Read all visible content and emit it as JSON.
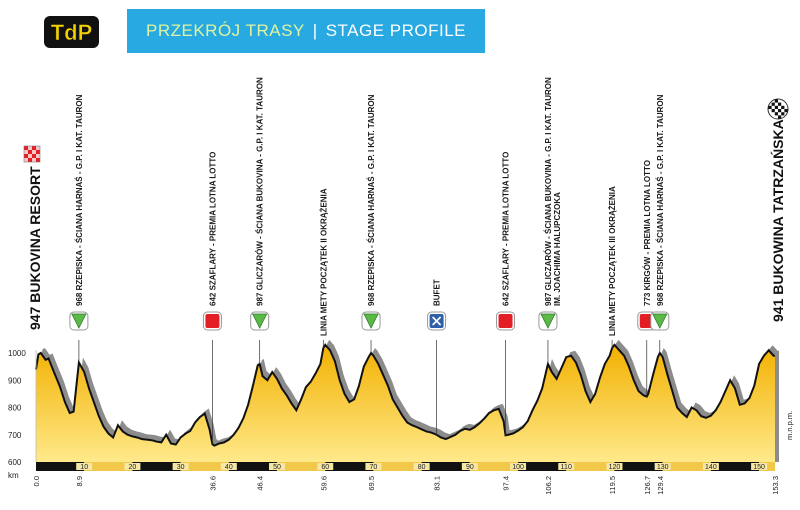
{
  "header": {
    "logo_text": "TdP",
    "title_pl": "PRZEKRÓJ TRASY",
    "separator": "|",
    "title_en": "STAGE PROFILE"
  },
  "colors": {
    "fill_top": "#f2b000",
    "fill_bottom": "#ffe98a",
    "shadow": "#8c8c8c",
    "banner": "#29a9e1",
    "sprint_red": "#e31e24",
    "kom_green": "#5bb947",
    "feed_blue": "#2f5fa7"
  },
  "icons": {
    "start": "checkered-flag-red-icon",
    "finish": "checkered-flag-black-icon",
    "kom": "kom-green-triangle-icon",
    "sprint": "sprint-red-square-icon",
    "feed": "feed-zone-x-icon"
  },
  "chart_data": {
    "type": "area",
    "ylabel": "m.n.p.m.",
    "xlabel": "km",
    "ylim": [
      600,
      1050
    ],
    "yticks": [
      "600",
      "700",
      "800",
      "900",
      "1000"
    ],
    "xlim": [
      0,
      153.3
    ],
    "band_ticks": [
      "10",
      "20",
      "30",
      "40",
      "50",
      "60",
      "70",
      "80",
      "90",
      "100",
      "110",
      "120",
      "130",
      "140",
      "150"
    ],
    "start_label": "947 BUKOVINA RESORT",
    "finish_label": "941 BUKOWINA TATRZAŃSKA",
    "km_labels": [
      "0.0",
      "8.9",
      "36.6",
      "46.4",
      "59.6",
      "69.5",
      "83.1",
      "97.4",
      "106.2",
      "119.5",
      "126.7",
      "129.4",
      "153.3"
    ],
    "profile": [
      [
        0,
        940
      ],
      [
        0.5,
        995
      ],
      [
        1,
        1000
      ],
      [
        2,
        975
      ],
      [
        2.6,
        980
      ],
      [
        3.5,
        940
      ],
      [
        5,
        875
      ],
      [
        6,
        820
      ],
      [
        7,
        780
      ],
      [
        7.8,
        785
      ],
      [
        8.9,
        965
      ],
      [
        10,
        930
      ],
      [
        11,
        870
      ],
      [
        12,
        820
      ],
      [
        13,
        770
      ],
      [
        14,
        730
      ],
      [
        15,
        705
      ],
      [
        16,
        690
      ],
      [
        17,
        735
      ],
      [
        18,
        712
      ],
      [
        19,
        700
      ],
      [
        20,
        694
      ],
      [
        21,
        690
      ],
      [
        22,
        684
      ],
      [
        23,
        682
      ],
      [
        24,
        680
      ],
      [
        25,
        675
      ],
      [
        26,
        672
      ],
      [
        27,
        700
      ],
      [
        28,
        668
      ],
      [
        29,
        664
      ],
      [
        30,
        690
      ],
      [
        31,
        704
      ],
      [
        32,
        714
      ],
      [
        33,
        745
      ],
      [
        34,
        765
      ],
      [
        35,
        778
      ],
      [
        36,
        720
      ],
      [
        36.6,
        665
      ],
      [
        37,
        660
      ],
      [
        38,
        668
      ],
      [
        39,
        672
      ],
      [
        40,
        682
      ],
      [
        41,
        700
      ],
      [
        42,
        725
      ],
      [
        43,
        760
      ],
      [
        44,
        810
      ],
      [
        45,
        880
      ],
      [
        46,
        955
      ],
      [
        46.4,
        960
      ],
      [
        47,
        915
      ],
      [
        48,
        900
      ],
      [
        49,
        930
      ],
      [
        50,
        905
      ],
      [
        51,
        870
      ],
      [
        52,
        845
      ],
      [
        53,
        815
      ],
      [
        54,
        790
      ],
      [
        55,
        830
      ],
      [
        56,
        875
      ],
      [
        57,
        895
      ],
      [
        58,
        925
      ],
      [
        59,
        960
      ],
      [
        59.6,
        1018
      ],
      [
        60,
        1030
      ],
      [
        61,
        1010
      ],
      [
        62,
        970
      ],
      [
        63,
        900
      ],
      [
        64,
        850
      ],
      [
        65,
        820
      ],
      [
        66,
        830
      ],
      [
        67,
        880
      ],
      [
        68,
        950
      ],
      [
        69,
        985
      ],
      [
        69.5,
        1000
      ],
      [
        70,
        990
      ],
      [
        71,
        960
      ],
      [
        72,
        920
      ],
      [
        73,
        880
      ],
      [
        74,
        830
      ],
      [
        75,
        800
      ],
      [
        76,
        770
      ],
      [
        77,
        745
      ],
      [
        78,
        735
      ],
      [
        79,
        728
      ],
      [
        80,
        720
      ],
      [
        81,
        712
      ],
      [
        82,
        708
      ],
      [
        83.1,
        700
      ],
      [
        84,
        690
      ],
      [
        85,
        684
      ],
      [
        86,
        692
      ],
      [
        87,
        700
      ],
      [
        88,
        714
      ],
      [
        89,
        722
      ],
      [
        90,
        718
      ],
      [
        91,
        728
      ],
      [
        92,
        742
      ],
      [
        93,
        760
      ],
      [
        94,
        780
      ],
      [
        95,
        790
      ],
      [
        96,
        795
      ],
      [
        97,
        750
      ],
      [
        97.4,
        698
      ],
      [
        98,
        700
      ],
      [
        99,
        705
      ],
      [
        100,
        715
      ],
      [
        101,
        728
      ],
      [
        102,
        750
      ],
      [
        103,
        790
      ],
      [
        104,
        825
      ],
      [
        105,
        870
      ],
      [
        106.2,
        960
      ],
      [
        107,
        930
      ],
      [
        108,
        905
      ],
      [
        109,
        945
      ],
      [
        110,
        985
      ],
      [
        111,
        990
      ],
      [
        112,
        965
      ],
      [
        113,
        920
      ],
      [
        114,
        860
      ],
      [
        115,
        820
      ],
      [
        116,
        850
      ],
      [
        117,
        910
      ],
      [
        118,
        960
      ],
      [
        119,
        990
      ],
      [
        119.5,
        1018
      ],
      [
        120,
        1030
      ],
      [
        121,
        1010
      ],
      [
        122,
        990
      ],
      [
        123,
        950
      ],
      [
        124,
        900
      ],
      [
        125,
        860
      ],
      [
        126,
        845
      ],
      [
        126.7,
        840
      ],
      [
        127,
        850
      ],
      [
        128,
        920
      ],
      [
        129,
        985
      ],
      [
        129.4,
        1000
      ],
      [
        130,
        985
      ],
      [
        131,
        920
      ],
      [
        132,
        860
      ],
      [
        133,
        800
      ],
      [
        134,
        780
      ],
      [
        135,
        765
      ],
      [
        136,
        800
      ],
      [
        137,
        790
      ],
      [
        138,
        768
      ],
      [
        139,
        762
      ],
      [
        140,
        770
      ],
      [
        141,
        790
      ],
      [
        142,
        820
      ],
      [
        143,
        860
      ],
      [
        144,
        900
      ],
      [
        145,
        870
      ],
      [
        146,
        810
      ],
      [
        147,
        815
      ],
      [
        148,
        835
      ],
      [
        149,
        880
      ],
      [
        150,
        960
      ],
      [
        151,
        990
      ],
      [
        152,
        1010
      ],
      [
        153,
        990
      ],
      [
        153.3,
        990
      ]
    ],
    "annotations": [
      {
        "km": 8.9,
        "marker": "kom",
        "text": "968 RZEPISKA - ŚCIANA HARNAŚ - G.P. I KAT. TAURON"
      },
      {
        "km": 36.6,
        "marker": "sprint",
        "text": "642 SZAFLARY - PREMIA LOTNA LOTTO"
      },
      {
        "km": 46.4,
        "marker": "kom",
        "text": "987 GLICZARÓW - ŚCIANA BUKOVINA - G.P. I KAT. TAURON"
      },
      {
        "km": 59.6,
        "marker": "none",
        "text": "LINIA METY POCZĄTEK II OKRĄŻENIA"
      },
      {
        "km": 69.5,
        "marker": "kom",
        "text": "968 RZEPISKA - ŚCIANA HARNAŚ - G.P. I KAT. TAURON"
      },
      {
        "km": 83.1,
        "marker": "feed",
        "text": "BUFET"
      },
      {
        "km": 97.4,
        "marker": "sprint",
        "text": "642 SZAFLARY - PREMIA LOTNA LOTTO"
      },
      {
        "km": 106.2,
        "marker": "kom",
        "text": "987 GLICZARÓW - ŚCIANA BUKOVINA - G.P. I KAT. TAURON",
        "text2": "IM. JOACHIMA HALUPCZOKA"
      },
      {
        "km": 119.5,
        "marker": "none",
        "text": "LINIA METY POCZĄTEK III OKRĄŻENIA"
      },
      {
        "km": 126.7,
        "marker": "sprint",
        "text": "773 KIRGÓW - PREMIA LOTNA LOTTO"
      },
      {
        "km": 129.4,
        "marker": "kom",
        "text": "968 RZEPISKA - ŚCIANA HARNAŚ - G.P. I KAT. TAURON"
      }
    ]
  }
}
